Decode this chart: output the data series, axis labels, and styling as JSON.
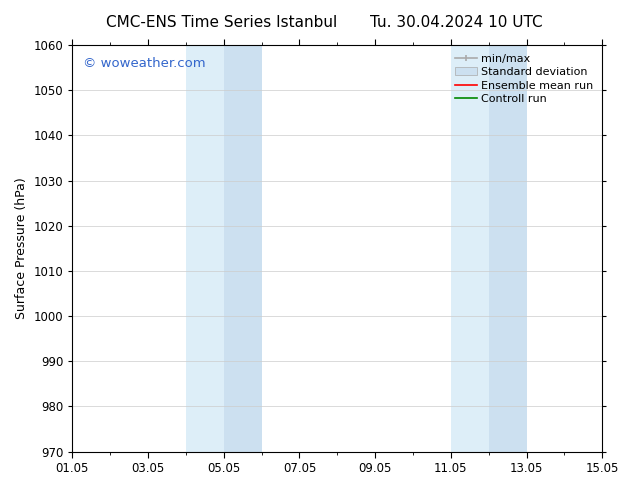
{
  "title_left": "CMC-ENS Time Series Istanbul",
  "title_right": "Tu. 30.04.2024 10 UTC",
  "ylabel": "Surface Pressure (hPa)",
  "ylim": [
    970,
    1060
  ],
  "yticks": [
    970,
    980,
    990,
    1000,
    1010,
    1020,
    1030,
    1040,
    1050,
    1060
  ],
  "xlim": [
    0,
    14
  ],
  "xtick_labels": [
    "01.05",
    "03.05",
    "05.05",
    "07.05",
    "09.05",
    "11.05",
    "13.05",
    "15.05"
  ],
  "xtick_positions": [
    0,
    2,
    4,
    6,
    8,
    10,
    12,
    14
  ],
  "shaded_regions": [
    {
      "x_start": 3,
      "x_end": 4,
      "color": "#ddeef8"
    },
    {
      "x_start": 4,
      "x_end": 5,
      "color": "#cce0f0"
    },
    {
      "x_start": 10,
      "x_end": 11,
      "color": "#ddeef8"
    },
    {
      "x_start": 11,
      "x_end": 12,
      "color": "#cce0f0"
    }
  ],
  "watermark_text": "© woweather.com",
  "watermark_color": "#3366cc",
  "background_color": "#ffffff",
  "legend_entries": [
    {
      "label": "min/max",
      "color": "#aaaaaa",
      "linewidth": 1.2,
      "type": "line_with_caps"
    },
    {
      "label": "Standard deviation",
      "color": "#cce0f0",
      "type": "patch"
    },
    {
      "label": "Ensemble mean run",
      "color": "#ff0000",
      "linewidth": 1.2,
      "type": "line"
    },
    {
      "label": "Controll run",
      "color": "#008800",
      "linewidth": 1.2,
      "type": "line"
    }
  ],
  "grid_color": "#cccccc",
  "grid_linewidth": 0.5,
  "title_fontsize": 11,
  "label_fontsize": 9,
  "tick_fontsize": 8.5,
  "legend_fontsize": 8,
  "watermark_fontsize": 9.5
}
